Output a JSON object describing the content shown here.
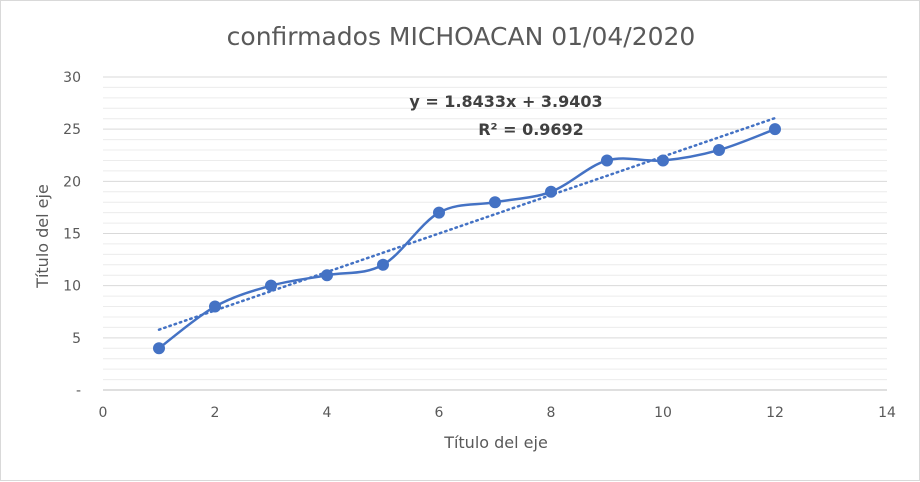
{
  "chart_data": {
    "type": "scatter",
    "title": "confirmados MICHOACAN 01/04/2020",
    "xlabel": "Título del eje",
    "ylabel": "Título del eje",
    "xlim": [
      0,
      14
    ],
    "ylim": [
      0,
      30
    ],
    "xticks": [
      0,
      2,
      4,
      6,
      8,
      10,
      12,
      14
    ],
    "xtick_labels": [
      "0",
      "2",
      "4",
      "6",
      "8",
      "10",
      "12",
      "14"
    ],
    "yticks": [
      0,
      5,
      10,
      15,
      20,
      25,
      30
    ],
    "ytick_labels": [
      "-",
      "5",
      "10",
      "15",
      "20",
      "25",
      "30"
    ],
    "grid": true,
    "series": [
      {
        "x": [
          1,
          2,
          3,
          4,
          5,
          6,
          7,
          8,
          9,
          10,
          11,
          12
        ],
        "y": [
          4,
          8,
          10,
          11,
          12,
          17,
          18,
          19,
          22,
          22,
          23,
          25
        ],
        "line": "smooth",
        "markers": true,
        "color": "#4472c4"
      }
    ],
    "trendline": {
      "type": "linear",
      "slope": 1.8433,
      "intercept": 3.9403,
      "x_range": [
        1,
        12
      ],
      "style": "dotted",
      "color": "#4472c4",
      "equation_label": "y = 1.8433x + 3.9403",
      "r2_label": "R² = 0.9692"
    }
  }
}
